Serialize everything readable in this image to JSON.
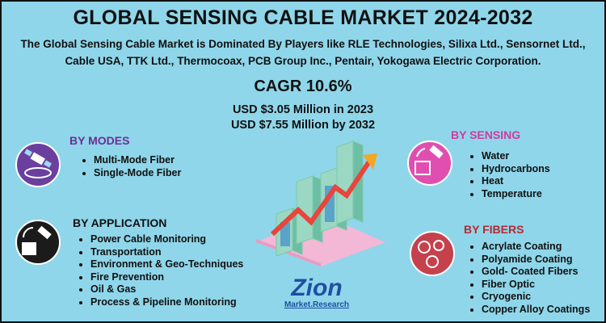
{
  "header": {
    "title": "GLOBAL SENSING CABLE MARKET 2024-2032",
    "subtitle": "The Global Sensing Cable Market is Dominated By Players like RLE Technologies, Silixa Ltd., Sensornet Ltd., Cable USA, TTK Ltd., Thermocoax, PCB Group Inc., Pentair, Yokogawa Electric Corporation."
  },
  "stats": {
    "cagr": "CAGR 10.6%",
    "value_2023": "USD $3.05 Million in 2023",
    "value_2032": "USD $7.55 Million  by 2032"
  },
  "sections": [
    {
      "heading": "BY MODES",
      "items": [
        "Multi-Mode Fiber",
        "Single-Mode Fiber"
      ]
    },
    {
      "heading": "BY APPLICATION",
      "items": [
        "Power Cable Monitoring",
        "Transportation",
        "Environment & Geo-Techniques",
        "Fire Prevention",
        "Oil & Gas",
        "Process & Pipeline Monitoring"
      ]
    },
    {
      "heading": "BY SENSING",
      "items": [
        "Water",
        "Hydrocarbons",
        "Heat",
        "Temperature"
      ]
    },
    {
      "heading": "BY FIBERS",
      "items": [
        "Acrylate Coating",
        "Polyamide Coating",
        "Gold- Coated Fibers",
        "Fiber Optic",
        "Cryogenic",
        "Copper Alloy Coatings"
      ]
    }
  ],
  "logo": {
    "name": "Zion",
    "tagline": "Market.Research"
  }
}
